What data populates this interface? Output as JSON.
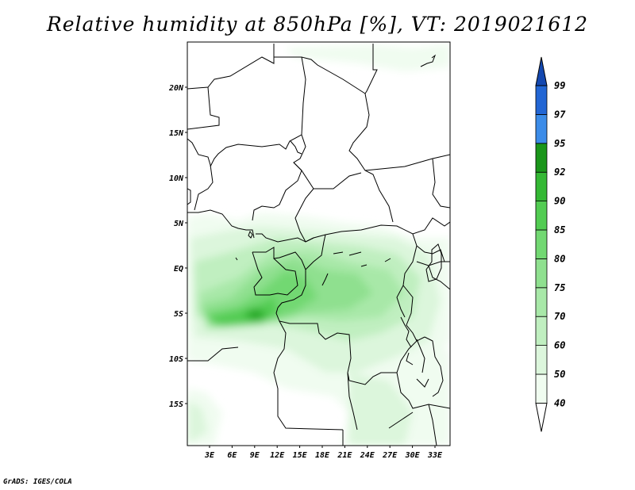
{
  "title": "Relative humidity at 850hPa [%], VT: 2019021612",
  "credit": "GrADS: IGES/COLA",
  "colors": {
    "c40_50": "#f0fcf0",
    "c50_60": "#dcf6dc",
    "c60_70": "#c0efc0",
    "c70_75": "#a8e8a8",
    "c75_80": "#8fe08f",
    "c80_85": "#72d872",
    "c85_90": "#52cc52",
    "c90_92": "#34b834",
    "c92_95": "#1a961a",
    "c95_97": "#3c8ce8",
    "c97_99": "#2266d4",
    "c99_up": "#1448b0"
  },
  "map": {
    "lat_labels": [
      "20N",
      "15N",
      "10N",
      "5N",
      "EQ",
      "5S",
      "10S",
      "15S"
    ],
    "lon_labels": [
      "3E",
      "6E",
      "9E",
      "12E",
      "15E",
      "18E",
      "21E",
      "24E",
      "27E",
      "30E",
      "33E"
    ]
  },
  "legend": {
    "levels": [
      "40",
      "50",
      "60",
      "70",
      "75",
      "80",
      "85",
      "90",
      "92",
      "95",
      "97",
      "99"
    ]
  }
}
